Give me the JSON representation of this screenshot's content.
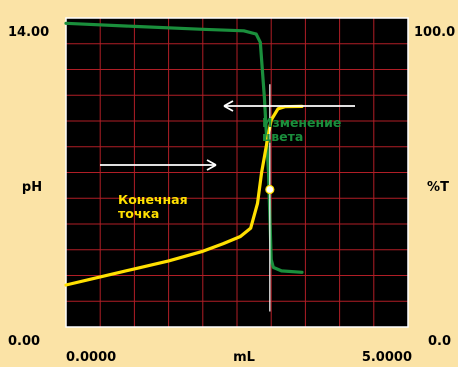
{
  "chart_data": {
    "type": "line",
    "xlim": [
      0.0,
      5.0
    ],
    "x_tick_labels": [
      "0.0000",
      "mL",
      "5.0000"
    ],
    "y_left": {
      "label": "pH",
      "top_label": "14.00",
      "bottom_label": "0.00",
      "range": [
        0,
        14
      ]
    },
    "y_right": {
      "label": "%T",
      "top_label": "100.0",
      "bottom_label": "0.0",
      "range": [
        0,
        100
      ]
    },
    "grid": true,
    "series": [
      {
        "color": "#1A8F3C",
        "axis": "left",
        "points": [
          [
            0.0,
            13.76
          ],
          [
            1.0,
            13.62
          ],
          [
            2.0,
            13.49
          ],
          [
            2.6,
            13.42
          ],
          [
            2.78,
            13.27
          ],
          [
            2.84,
            12.9
          ],
          [
            2.9,
            10.4
          ],
          [
            2.96,
            7.0
          ],
          [
            3.0,
            3.06
          ],
          [
            3.03,
            2.7
          ],
          [
            3.15,
            2.54
          ],
          [
            3.45,
            2.48
          ]
        ]
      },
      {
        "color": "#FFE000",
        "axis": "right",
        "points": [
          [
            0.0,
            13.6
          ],
          [
            0.5,
            16.2
          ],
          [
            1.0,
            18.8
          ],
          [
            1.5,
            21.4
          ],
          [
            2.0,
            24.5
          ],
          [
            2.3,
            27.0
          ],
          [
            2.55,
            29.3
          ],
          [
            2.7,
            32.0
          ],
          [
            2.8,
            40.0
          ],
          [
            2.86,
            50.0
          ],
          [
            2.94,
            60.0
          ],
          [
            3.0,
            67.0
          ],
          [
            3.1,
            70.6
          ],
          [
            3.2,
            71.3
          ],
          [
            3.45,
            71.4
          ]
        ]
      }
    ],
    "annotations": [
      {
        "text_lines": [
          "Изменение",
          "цвета"
        ],
        "color": "#1A8F3C",
        "arrow": "left"
      },
      {
        "text_lines": [
          "Конечная",
          "точка"
        ],
        "color": "#FFE000",
        "arrow": "right"
      }
    ],
    "endpoint_x": 2.98
  }
}
